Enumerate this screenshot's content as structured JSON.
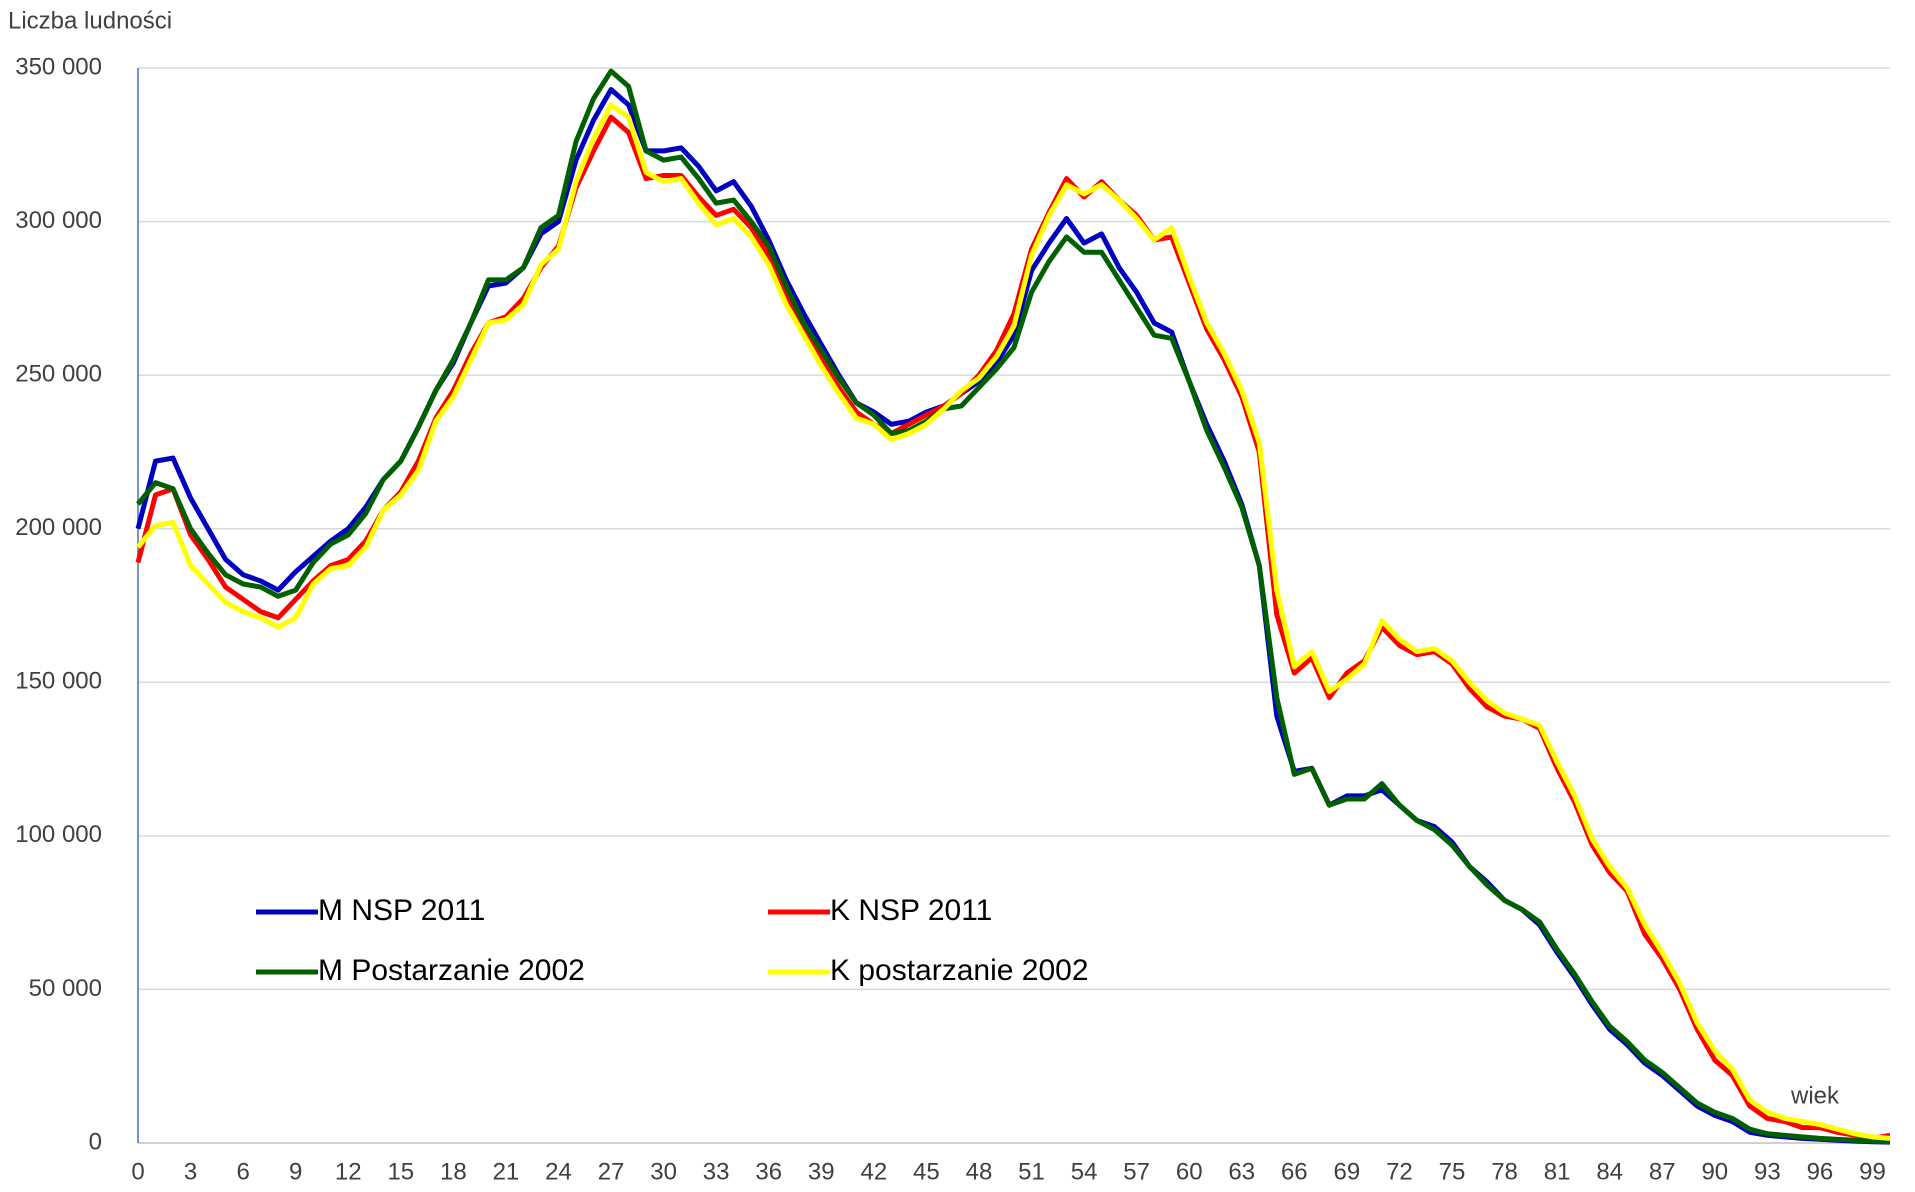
{
  "chart_data": {
    "type": "line",
    "y_label": "Liczba ludności",
    "x_label": "wiek",
    "x": [
      0,
      1,
      2,
      3,
      4,
      5,
      6,
      7,
      8,
      9,
      10,
      11,
      12,
      13,
      14,
      15,
      16,
      17,
      18,
      19,
      20,
      21,
      22,
      23,
      24,
      25,
      26,
      27,
      28,
      29,
      30,
      31,
      32,
      33,
      34,
      35,
      36,
      37,
      38,
      39,
      40,
      41,
      42,
      43,
      44,
      45,
      46,
      47,
      48,
      49,
      50,
      51,
      52,
      53,
      54,
      55,
      56,
      57,
      58,
      59,
      60,
      61,
      62,
      63,
      64,
      65,
      66,
      67,
      68,
      69,
      70,
      71,
      72,
      73,
      74,
      75,
      76,
      77,
      78,
      79,
      80,
      81,
      82,
      83,
      84,
      85,
      86,
      87,
      88,
      89,
      90,
      91,
      92,
      93,
      94,
      95,
      96,
      97,
      98,
      99,
      100
    ],
    "xlim": [
      0,
      100
    ],
    "xticks": [
      0,
      3,
      6,
      9,
      12,
      15,
      18,
      21,
      24,
      27,
      30,
      33,
      36,
      39,
      42,
      45,
      48,
      51,
      54,
      57,
      60,
      63,
      66,
      69,
      72,
      75,
      78,
      81,
      84,
      87,
      90,
      93,
      96,
      99
    ],
    "ylim": [
      0,
      350000
    ],
    "yticks": [
      0,
      {
        "value": 50000,
        "label": "50 000"
      },
      {
        "value": 100000,
        "label": "100 000"
      },
      {
        "value": 150000,
        "label": "150 000"
      },
      {
        "value": 200000,
        "label": "200 000"
      },
      {
        "value": 250000,
        "label": "250 000"
      },
      {
        "value": 300000,
        "label": "300 000"
      },
      {
        "value": 350000,
        "label": "350 000"
      }
    ],
    "grid": true,
    "legend": "lower left",
    "series": [
      {
        "name": "M NSP 2011",
        "color": "#0000c0",
        "values": [
          200000,
          222000,
          223000,
          210000,
          200000,
          190000,
          185000,
          183000,
          180000,
          186000,
          191000,
          196000,
          200000,
          207000,
          216000,
          222000,
          233000,
          245000,
          254000,
          267000,
          279000,
          280000,
          285000,
          296000,
          300000,
          320000,
          333000,
          343000,
          338000,
          323000,
          323000,
          324000,
          318000,
          310000,
          313000,
          305000,
          294000,
          281000,
          270000,
          260000,
          250000,
          241000,
          238000,
          234000,
          235000,
          238000,
          240000,
          244000,
          248000,
          254000,
          263000,
          284000,
          293000,
          301000,
          293000,
          296000,
          285000,
          277000,
          267000,
          264000,
          248000,
          234000,
          222000,
          208000,
          188000,
          139000,
          121000,
          122000,
          110000,
          113000,
          113000,
          115000,
          110000,
          105000,
          103000,
          98000,
          90000,
          85000,
          79000,
          76000,
          71000,
          62000,
          54000,
          45000,
          37000,
          32000,
          26000,
          22000,
          17000,
          12000,
          9000,
          7000,
          3500,
          2500,
          2000,
          1500,
          1200,
          900,
          600,
          400,
          300
        ]
      },
      {
        "name": "K NSP 2011",
        "color": "#ff0000",
        "values": [
          189000,
          211000,
          213000,
          198000,
          190000,
          181000,
          177000,
          173000,
          171000,
          177000,
          183000,
          188000,
          190000,
          196000,
          206000,
          212000,
          222000,
          236000,
          245000,
          257000,
          267000,
          269000,
          275000,
          285000,
          292000,
          311000,
          323000,
          334000,
          329000,
          314000,
          315000,
          315000,
          308000,
          302000,
          304000,
          298000,
          289000,
          276000,
          265000,
          255000,
          246000,
          238000,
          234000,
          231000,
          234000,
          237000,
          240000,
          244000,
          250000,
          258000,
          270000,
          291000,
          303000,
          314000,
          308000,
          313000,
          307000,
          302000,
          294000,
          295000,
          280000,
          265000,
          255000,
          243000,
          225000,
          172000,
          153000,
          158000,
          145000,
          153000,
          157000,
          168000,
          162000,
          159000,
          160000,
          156000,
          148000,
          142000,
          139000,
          138000,
          135000,
          122000,
          111000,
          97000,
          88000,
          82000,
          68000,
          60000,
          50000,
          37000,
          27000,
          22000,
          12000,
          8000,
          7000,
          5000,
          5000,
          3500,
          2500,
          1500,
          2500
        ]
      },
      {
        "name": "M Postarzanie 2002",
        "color": "#006000",
        "values": [
          208000,
          215000,
          213000,
          200000,
          192000,
          185000,
          182000,
          181000,
          178000,
          180000,
          189000,
          195000,
          198000,
          205000,
          216000,
          222000,
          233000,
          245000,
          255000,
          267000,
          281000,
          281000,
          285000,
          298000,
          302000,
          326000,
          340000,
          349000,
          344000,
          323000,
          320000,
          321000,
          314000,
          306000,
          307000,
          300000,
          292000,
          279000,
          267000,
          258000,
          249000,
          241000,
          237000,
          231000,
          232000,
          235000,
          239000,
          240000,
          246000,
          252000,
          259000,
          277000,
          287000,
          295000,
          290000,
          290000,
          281000,
          272000,
          263000,
          262000,
          248000,
          232000,
          220000,
          207000,
          188000,
          145000,
          120000,
          122000,
          110000,
          112000,
          112000,
          117000,
          110000,
          105000,
          102000,
          97000,
          90000,
          84000,
          79000,
          76000,
          72000,
          63000,
          55000,
          46000,
          38000,
          33000,
          27000,
          23000,
          18000,
          13000,
          10000,
          8000,
          4500,
          3000,
          2500,
          2000,
          1500,
          1200,
          900,
          600,
          400
        ]
      },
      {
        "name": "K postarzanie 2002",
        "color": "#ffff00",
        "values": [
          194000,
          201000,
          202000,
          188000,
          182000,
          176000,
          173000,
          171000,
          168000,
          171000,
          182000,
          187000,
          188000,
          194000,
          206000,
          211000,
          219000,
          235000,
          243000,
          255000,
          267000,
          268000,
          273000,
          286000,
          291000,
          313000,
          327000,
          338000,
          334000,
          316000,
          313000,
          314000,
          306000,
          299000,
          301000,
          295000,
          286000,
          273000,
          263000,
          253000,
          244000,
          236000,
          234000,
          229000,
          231000,
          234000,
          239000,
          245000,
          249000,
          256000,
          266000,
          289000,
          302000,
          312000,
          309000,
          312000,
          307000,
          301000,
          294000,
          298000,
          282000,
          267000,
          257000,
          245000,
          228000,
          180000,
          155000,
          160000,
          147000,
          151000,
          156000,
          170000,
          164000,
          160000,
          161000,
          157000,
          150000,
          144000,
          140000,
          138000,
          136000,
          124000,
          113000,
          99000,
          90000,
          83000,
          71000,
          62000,
          52000,
          39000,
          30000,
          24000,
          14000,
          10000,
          8000,
          7000,
          6000,
          4500,
          3000,
          2000,
          1500
        ]
      }
    ]
  }
}
